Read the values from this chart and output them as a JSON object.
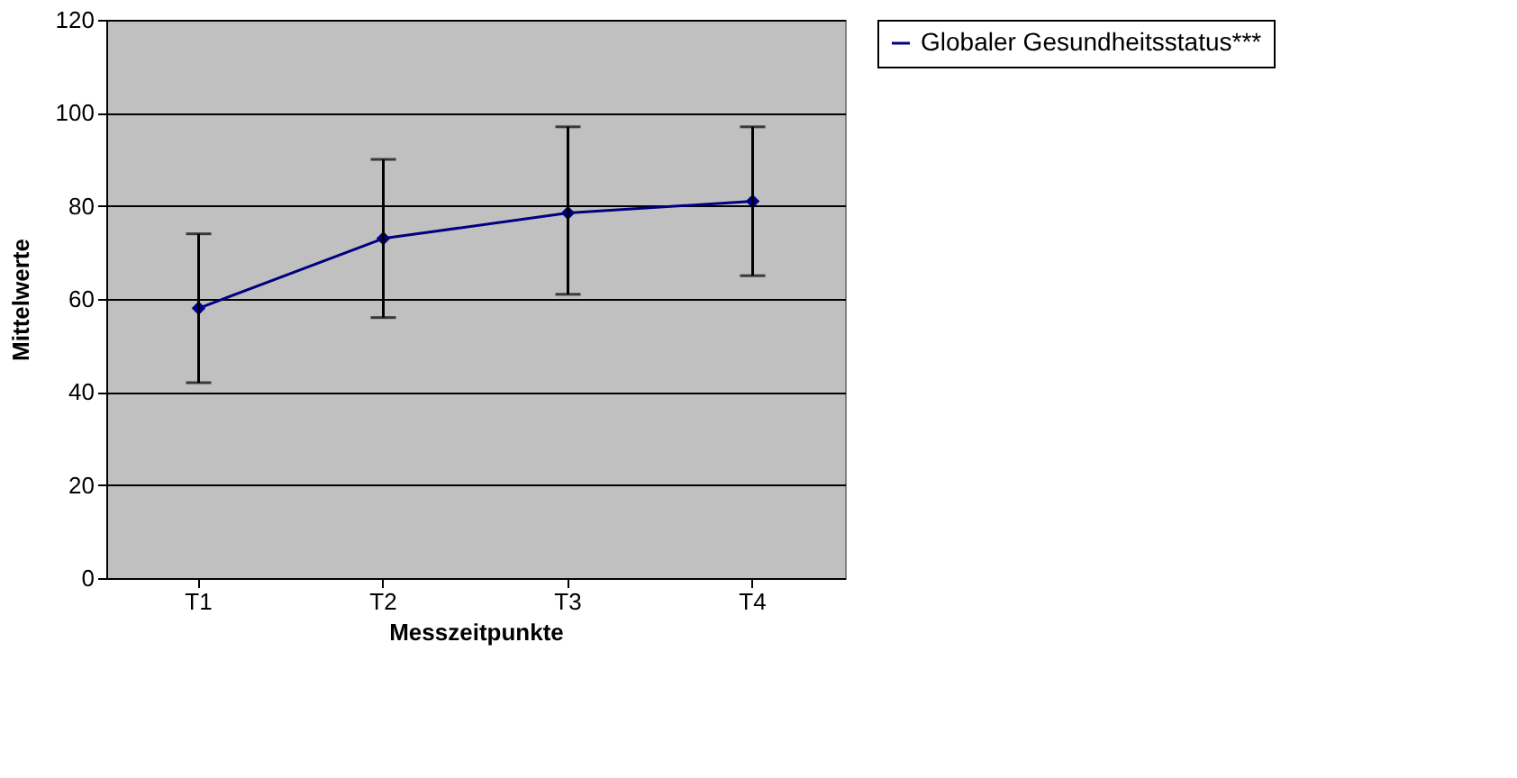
{
  "chart_data": {
    "type": "line",
    "xlabel": "Messzeitpunkte",
    "ylabel": "Mittelwerte",
    "categories": [
      "T1",
      "T2",
      "T3",
      "T4"
    ],
    "series": [
      {
        "name": "Globaler Gesundheitsstatus***",
        "color": "#000080",
        "values": [
          58,
          73,
          78.5,
          81
        ],
        "errors": [
          [
            42,
            74
          ],
          [
            56,
            90
          ],
          [
            61,
            97
          ],
          [
            65,
            97
          ]
        ]
      }
    ],
    "ylim": [
      0,
      120
    ],
    "yticks": [
      0,
      20,
      40,
      60,
      80,
      100,
      120
    ],
    "grid": "y",
    "legend": "right",
    "marker": "diamond",
    "line_style": "solid"
  }
}
